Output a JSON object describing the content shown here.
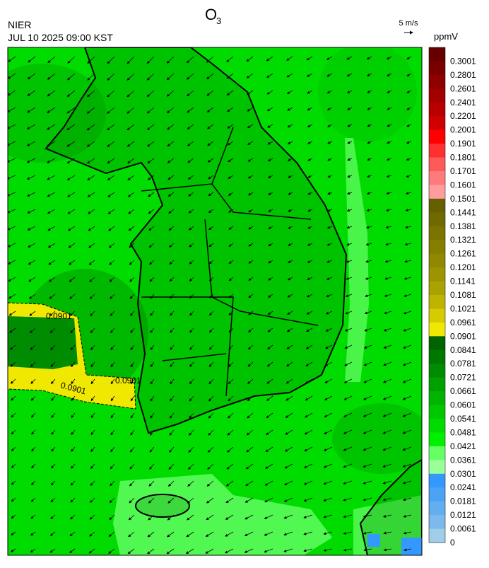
{
  "header": {
    "title": {
      "text": "O",
      "subscript": "3"
    },
    "agency": "NIER",
    "timestamp": "JUL 10 2025 09:00 KST",
    "wind_scale": "5 m/s",
    "unit": "ppmV"
  },
  "map": {
    "contour_labels": [
      "0.0901",
      "0.0901",
      "0.0901"
    ]
  },
  "colorbar": {
    "labels": [
      "0.3001",
      "0.2801",
      "0.2601",
      "0.2401",
      "0.2201",
      "0.2001",
      "0.1901",
      "0.1801",
      "0.1701",
      "0.1601",
      "0.1501",
      "0.1441",
      "0.1381",
      "0.1321",
      "0.1261",
      "0.1201",
      "0.1141",
      "0.1081",
      "0.1021",
      "0.0961",
      "0.0901",
      "0.0841",
      "0.0781",
      "0.0721",
      "0.0661",
      "0.0601",
      "0.0541",
      "0.0481",
      "0.0421",
      "0.0361",
      "0.0301",
      "0.0241",
      "0.0181",
      "0.0121",
      "0.0061",
      "0"
    ],
    "colors": [
      "#660000",
      "#7a0000",
      "#8f0000",
      "#a30000",
      "#b80000",
      "#d10000",
      "#ff0000",
      "#ff3030",
      "#ff5a5a",
      "#ff7a7a",
      "#ff9c9c",
      "#665f00",
      "#6f6a00",
      "#7a7400",
      "#857e00",
      "#908800",
      "#9c9400",
      "#aaa200",
      "#bdb400",
      "#d4cb00",
      "#f0e800",
      "#006400",
      "#007800",
      "#008c00",
      "#00a000",
      "#00b400",
      "#00c800",
      "#00dc00",
      "#00f000",
      "#66ff66",
      "#99ff99",
      "#3399ff",
      "#4aa3f5",
      "#62aef0",
      "#7db9ec",
      "#a0cde8"
    ]
  }
}
